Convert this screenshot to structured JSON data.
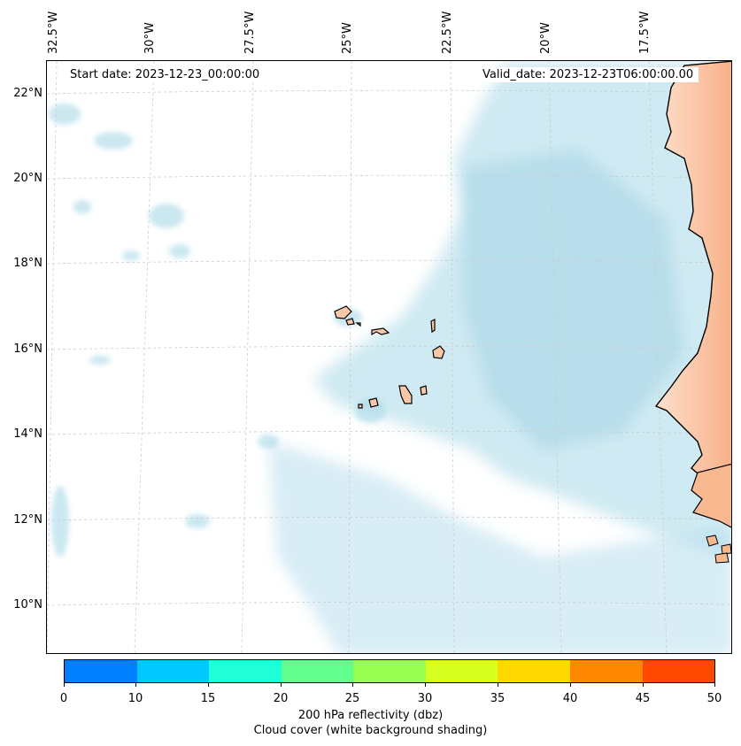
{
  "map": {
    "lon_labels": [
      "32.5°W",
      "30°W",
      "27.5°W",
      "25°W",
      "22.5°W",
      "20°W",
      "17.5°W"
    ],
    "lat_labels": [
      "22°N",
      "20°N",
      "18°N",
      "16°N",
      "14°N",
      "12°N",
      "10°N"
    ],
    "start_date": "Start date: 2023-12-23_00:00:00",
    "valid_date": "Valid_date: 2023-12-23T06:00:00.00"
  },
  "colorbar": {
    "colors": [
      "#0080ff",
      "#00c8ff",
      "#20ffd8",
      "#60ff90",
      "#98ff50",
      "#d8ff20",
      "#ffd800",
      "#ff8800",
      "#ff4800"
    ],
    "ticks": [
      "0",
      "10",
      "15",
      "20",
      "25",
      "30",
      "35",
      "40",
      "45",
      "50"
    ],
    "label_line1": "200 hPa reflectivity (dbz)",
    "label_line2": "Cloud cover (white background shading)"
  },
  "colors": {
    "cloud": "#a8d8e8",
    "land": "#f8b890",
    "coast": "#000000",
    "grid": "#cccccc"
  }
}
